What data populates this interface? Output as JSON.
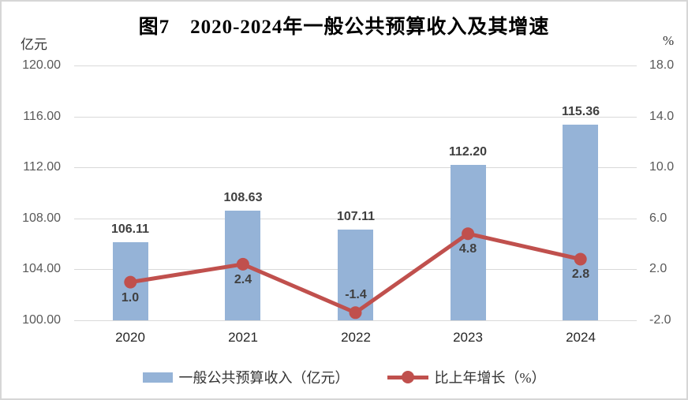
{
  "title": "图7　2020-2024年一般公共预算收入及其增速",
  "left_axis": {
    "unit": "亿元",
    "labels": [
      "120.00",
      "116.00",
      "112.00",
      "108.00",
      "104.00",
      "100.00"
    ],
    "values": [
      120,
      116,
      112,
      108,
      104,
      100
    ]
  },
  "right_axis": {
    "unit": "%",
    "labels": [
      "18.0",
      "14.0",
      "10.0",
      "6.0",
      "2.0",
      "-2.0"
    ],
    "values": [
      18,
      14,
      10,
      6,
      2,
      -2
    ]
  },
  "chart_data": {
    "type": "bar+line",
    "title": "图7　2020-2024年一般公共预算收入及其增速",
    "categories": [
      "2020",
      "2021",
      "2022",
      "2023",
      "2024"
    ],
    "series": [
      {
        "name": "一般公共预算收入（亿元）",
        "type": "bar",
        "axis": "left",
        "values": [
          106.11,
          108.63,
          107.11,
          112.2,
          115.36
        ],
        "labels": [
          "106.11",
          "108.63",
          "107.11",
          "112.20",
          "115.36"
        ],
        "color": "#95B3D7"
      },
      {
        "name": "比上年增长（%）",
        "type": "line",
        "axis": "right",
        "values": [
          1.0,
          2.4,
          -1.4,
          4.8,
          2.8
        ],
        "labels": [
          "1.0",
          "2.4",
          "-1.4",
          "4.8",
          "2.8"
        ],
        "color": "#C0504D"
      }
    ],
    "left_ylim": [
      100,
      120
    ],
    "right_ylim": [
      -2,
      18
    ],
    "grid": true,
    "legend_position": "bottom"
  },
  "legend": {
    "items": [
      {
        "label": "一般公共预算收入（亿元）",
        "swatch": "bar",
        "color": "#95B3D7"
      },
      {
        "label": "比上年增长（%）",
        "swatch": "line-dot",
        "color": "#C0504D"
      }
    ]
  },
  "colors": {
    "bar": "#95B3D7",
    "line": "#C0504D",
    "grid": "#d9d9d9",
    "tick_text": "#595959",
    "category_text": "#262626",
    "value_text": "#404040",
    "frame_border": "#d6d6d6"
  }
}
